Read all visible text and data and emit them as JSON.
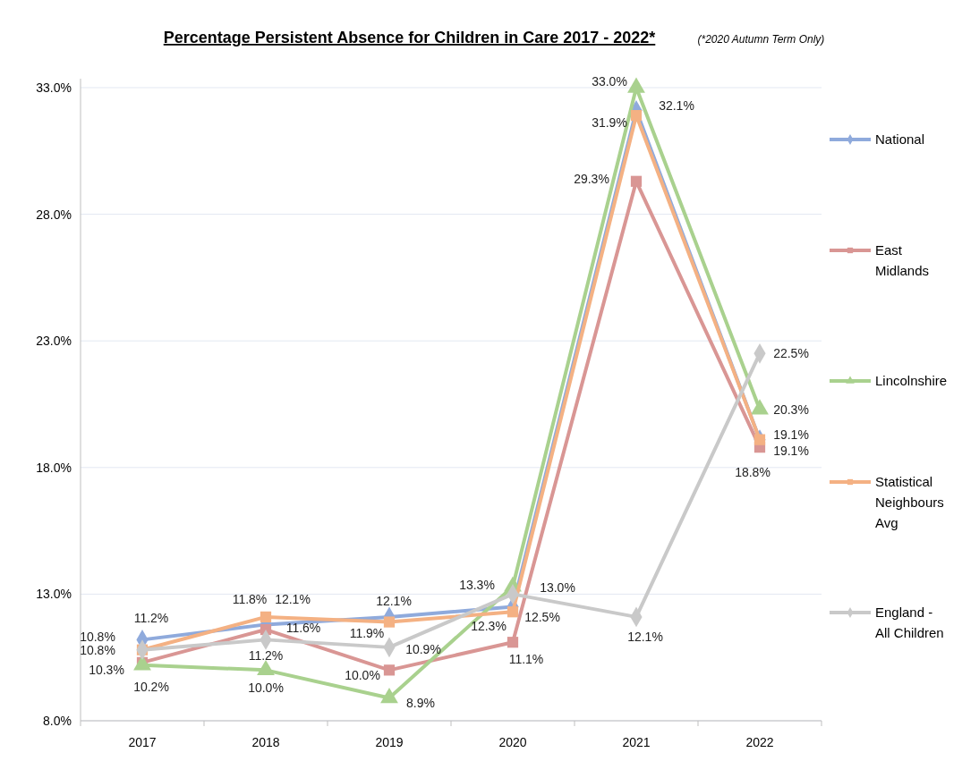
{
  "chart_data": {
    "type": "line",
    "title": "Percentage Persistent Absence for Children in Care 2017 - 2022*",
    "subtitle": "(*2020 Autumn Term Only)",
    "categories": [
      "2017",
      "2018",
      "2019",
      "2020",
      "2021",
      "2022"
    ],
    "series": [
      {
        "name": "National",
        "color": "#8faadc",
        "marker": "diamond",
        "values": [
          11.2,
          11.8,
          12.1,
          12.5,
          32.1,
          19.1
        ],
        "value_labels": [
          "11.2%",
          "11.8%",
          "12.1%",
          "12.5%",
          "32.1%",
          "19.1%"
        ]
      },
      {
        "name": "East Midlands",
        "color": "#d99694",
        "marker": "square",
        "values": [
          10.3,
          11.6,
          10.0,
          11.1,
          29.3,
          18.8
        ],
        "value_labels": [
          "10.3%",
          "11.6%",
          "10.0%",
          "11.1%",
          "29.3%",
          "18.8%"
        ]
      },
      {
        "name": "Lincolnshire",
        "color": "#a9d18e",
        "marker": "triangle",
        "values": [
          10.2,
          10.0,
          8.9,
          13.3,
          33.0,
          20.3
        ],
        "value_labels": [
          "10.2%",
          "10.0%",
          "8.9%",
          "13.3%",
          "33.0%",
          "20.3%"
        ]
      },
      {
        "name": "Statistical Neighbours Avg",
        "color": "#f4b183",
        "marker": "square",
        "values": [
          10.8,
          12.1,
          11.9,
          12.3,
          31.9,
          19.1
        ],
        "value_labels": [
          "10.8%",
          "12.1%",
          "11.9%",
          "12.3%",
          "31.9%",
          "19.1%"
        ]
      },
      {
        "name": "England - All Children",
        "color": "#c9c9c9",
        "marker": "diamond",
        "values": [
          10.8,
          11.2,
          10.9,
          13.0,
          12.1,
          22.5
        ],
        "value_labels": [
          "10.8%",
          "11.2%",
          "10.9%",
          "13.0%",
          "12.1%",
          "22.5%"
        ]
      }
    ],
    "ylim": [
      8,
      33
    ],
    "yticks": [
      {
        "value": 8,
        "label": "8.0%"
      },
      {
        "value": 13,
        "label": "13.0%"
      },
      {
        "value": 18,
        "label": "18.0%"
      },
      {
        "value": 23,
        "label": "23.0%"
      },
      {
        "value": 28,
        "label": "28.0%"
      },
      {
        "value": 33,
        "label": "33.0%"
      }
    ],
    "grid": "y",
    "legend": "right",
    "line_style": "solid"
  }
}
